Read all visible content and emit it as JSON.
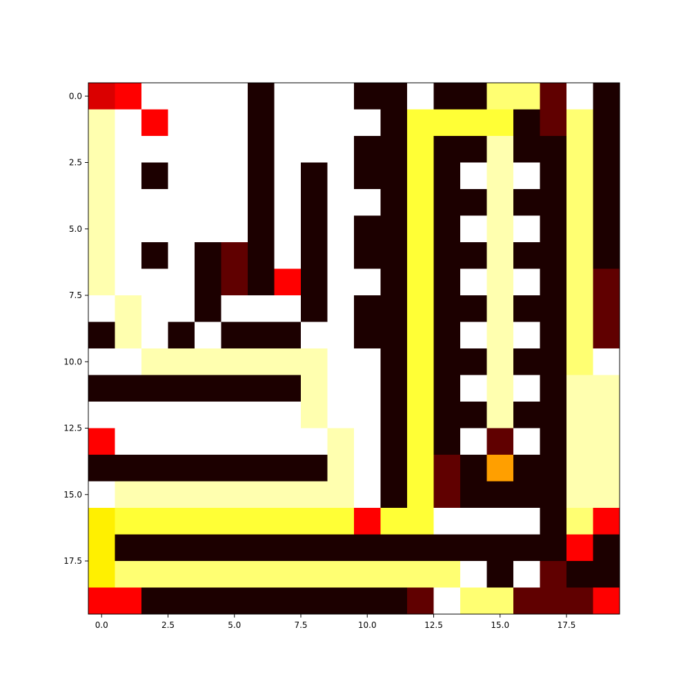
{
  "chart_data": {
    "type": "heatmap",
    "title": "",
    "xlabel": "",
    "ylabel": "",
    "colormap": "hot",
    "value_range": [
      0,
      1
    ],
    "xlim": [
      -0.5,
      19.5
    ],
    "ylim": [
      19.5,
      -0.5
    ],
    "x_ticks": [
      {
        "value": 0,
        "label": "0.0"
      },
      {
        "value": 2.5,
        "label": "2.5"
      },
      {
        "value": 5,
        "label": "5.0"
      },
      {
        "value": 7.5,
        "label": "7.5"
      },
      {
        "value": 10,
        "label": "10.0"
      },
      {
        "value": 12.5,
        "label": "12.5"
      },
      {
        "value": 15,
        "label": "15.0"
      },
      {
        "value": 17.5,
        "label": "17.5"
      }
    ],
    "y_ticks": [
      {
        "value": 0,
        "label": "0.0"
      },
      {
        "value": 2.5,
        "label": "2.5"
      },
      {
        "value": 5,
        "label": "5.0"
      },
      {
        "value": 7.5,
        "label": "7.5"
      },
      {
        "value": 10,
        "label": "10.0"
      },
      {
        "value": 12.5,
        "label": "12.5"
      },
      {
        "value": 15,
        "label": "15.0"
      },
      {
        "value": 17.5,
        "label": "17.5"
      }
    ],
    "grid": false,
    "legend": false,
    "matrix": [
      [
        0.28,
        0.36,
        1,
        1,
        1,
        1,
        0,
        1,
        1,
        1,
        0,
        0,
        1,
        0,
        0,
        0.86,
        0.86,
        0.1,
        1,
        0
      ],
      [
        0.92,
        1,
        0.36,
        1,
        1,
        1,
        0,
        1,
        1,
        1,
        1,
        0,
        0.8,
        0.8,
        0.8,
        0.8,
        0,
        0.1,
        0.86,
        0
      ],
      [
        0.92,
        1,
        1,
        1,
        1,
        1,
        0,
        1,
        1,
        1,
        0,
        0,
        0.8,
        0,
        0,
        0.92,
        0,
        0,
        0.86,
        0
      ],
      [
        0.92,
        1,
        0,
        1,
        1,
        1,
        0,
        1,
        0,
        1,
        0,
        0,
        0.8,
        0,
        1,
        0.92,
        1,
        0,
        0.86,
        0
      ],
      [
        0.92,
        1,
        1,
        1,
        1,
        1,
        0,
        1,
        0,
        1,
        1,
        0,
        0.8,
        0,
        0,
        0.92,
        0,
        0,
        0.86,
        0
      ],
      [
        0.92,
        1,
        1,
        1,
        1,
        1,
        0,
        1,
        0,
        1,
        0,
        0,
        0.8,
        0,
        1,
        0.92,
        1,
        0,
        0.86,
        0
      ],
      [
        0.92,
        1,
        0,
        1,
        0,
        0.1,
        0,
        1,
        0,
        1,
        0,
        0,
        0.8,
        0,
        0,
        0.92,
        0,
        0,
        0.86,
        0
      ],
      [
        0.92,
        1,
        1,
        1,
        0,
        0.1,
        0,
        0.36,
        0,
        1,
        1,
        0,
        0.8,
        0,
        1,
        0.92,
        1,
        0,
        0.86,
        0.1
      ],
      [
        1,
        0.92,
        1,
        1,
        0,
        1,
        1,
        1,
        0,
        1,
        0,
        0,
        0.8,
        0,
        0,
        0.92,
        0,
        0,
        0.86,
        0.1
      ],
      [
        0,
        0.92,
        1,
        0,
        1,
        0,
        0,
        0,
        1,
        1,
        0,
        0,
        0.8,
        0,
        1,
        0.92,
        1,
        0,
        0.86,
        0.1
      ],
      [
        1,
        1,
        0.92,
        0.92,
        0.92,
        0.92,
        0.92,
        0.92,
        0.92,
        1,
        1,
        0,
        0.8,
        0,
        0,
        0.92,
        0,
        0,
        0.86,
        1
      ],
      [
        0,
        0,
        0,
        0,
        0,
        0,
        0,
        0,
        0.92,
        1,
        1,
        0,
        0.8,
        0,
        1,
        0.92,
        1,
        0,
        0.92,
        0.92
      ],
      [
        1,
        1,
        1,
        1,
        1,
        1,
        1,
        1,
        0.92,
        1,
        1,
        0,
        0.8,
        0,
        0,
        0.92,
        0,
        0,
        0.92,
        0.92
      ],
      [
        0.36,
        1,
        1,
        1,
        1,
        1,
        1,
        1,
        1,
        0.92,
        1,
        0,
        0.8,
        0,
        1,
        0.1,
        1,
        0,
        0.92,
        0.92
      ],
      [
        0,
        0,
        0,
        0,
        0,
        0,
        0,
        0,
        0,
        0.92,
        1,
        0,
        0.8,
        0.1,
        0,
        0.6,
        0,
        0,
        0.92,
        0.92
      ],
      [
        1,
        0.92,
        0.92,
        0.92,
        0.92,
        0.92,
        0.92,
        0.92,
        0.92,
        0.92,
        1,
        0,
        0.8,
        0.1,
        0,
        0,
        0,
        0,
        0.92,
        0.92
      ],
      [
        0.72,
        0.8,
        0.8,
        0.8,
        0.8,
        0.8,
        0.8,
        0.8,
        0.8,
        0.8,
        0.36,
        0.8,
        0.8,
        1,
        1,
        1,
        1,
        0,
        0.86,
        0.36
      ],
      [
        0.72,
        0,
        0,
        0,
        0,
        0,
        0,
        0,
        0,
        0,
        0,
        0,
        0,
        0,
        0,
        0,
        0,
        0,
        0.36,
        0
      ],
      [
        0.72,
        0.86,
        0.86,
        0.86,
        0.86,
        0.86,
        0.86,
        0.86,
        0.86,
        0.86,
        0.86,
        0.86,
        0.86,
        0.86,
        1,
        0,
        1,
        0.1,
        0,
        0
      ],
      [
        0.36,
        0.36,
        0,
        0,
        0,
        0,
        0,
        0,
        0,
        0,
        0,
        0,
        0.1,
        1,
        0.86,
        0.86,
        0.1,
        0.1,
        0.1,
        0.36
      ]
    ]
  }
}
